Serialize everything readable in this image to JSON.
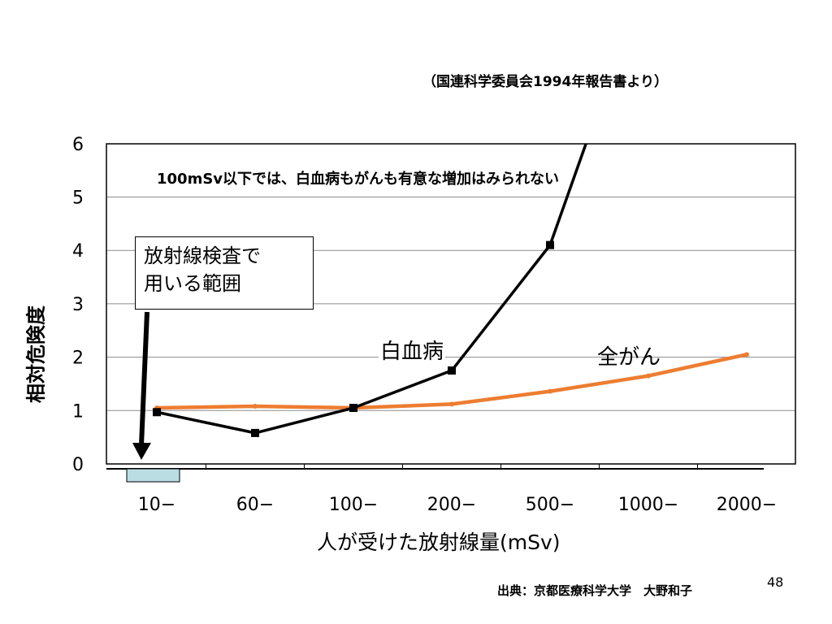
{
  "source_note": "（国連科学委員会1994年報告書より）",
  "annotation": "100mSv以下では、白血病もがんも有意な増加はみられない",
  "callout": {
    "line1": "放射線検査で",
    "line2": "用いる範囲"
  },
  "credit": "出典：京都医療科学大学　大野和子",
  "page_number": "48",
  "colors": {
    "leukemia": "#000000",
    "all_cancer": "#ED7D31",
    "range_box": "#B9DDE3",
    "gridline": "#8C8C8C"
  },
  "chart_data": {
    "type": "line",
    "xlabel": "人が受けた放射線量(mSv)",
    "ylabel": "相対危険度",
    "categories": [
      "10−",
      "60−",
      "100−",
      "200−",
      "500−",
      "1000−",
      "2000−"
    ],
    "ylim": [
      0,
      6
    ],
    "yticks": [
      "0",
      "1",
      "2",
      "3",
      "4",
      "5",
      "6"
    ],
    "grid": true,
    "series": [
      {
        "name": "白血病",
        "values": [
          0.97,
          0.58,
          1.05,
          1.75,
          4.1,
          null,
          null
        ],
        "overflow_to": 6.0,
        "markers": true
      },
      {
        "name": "全がん",
        "values": [
          1.05,
          1.08,
          1.05,
          1.12,
          1.36,
          1.65,
          2.05
        ],
        "markers": false
      }
    ]
  }
}
